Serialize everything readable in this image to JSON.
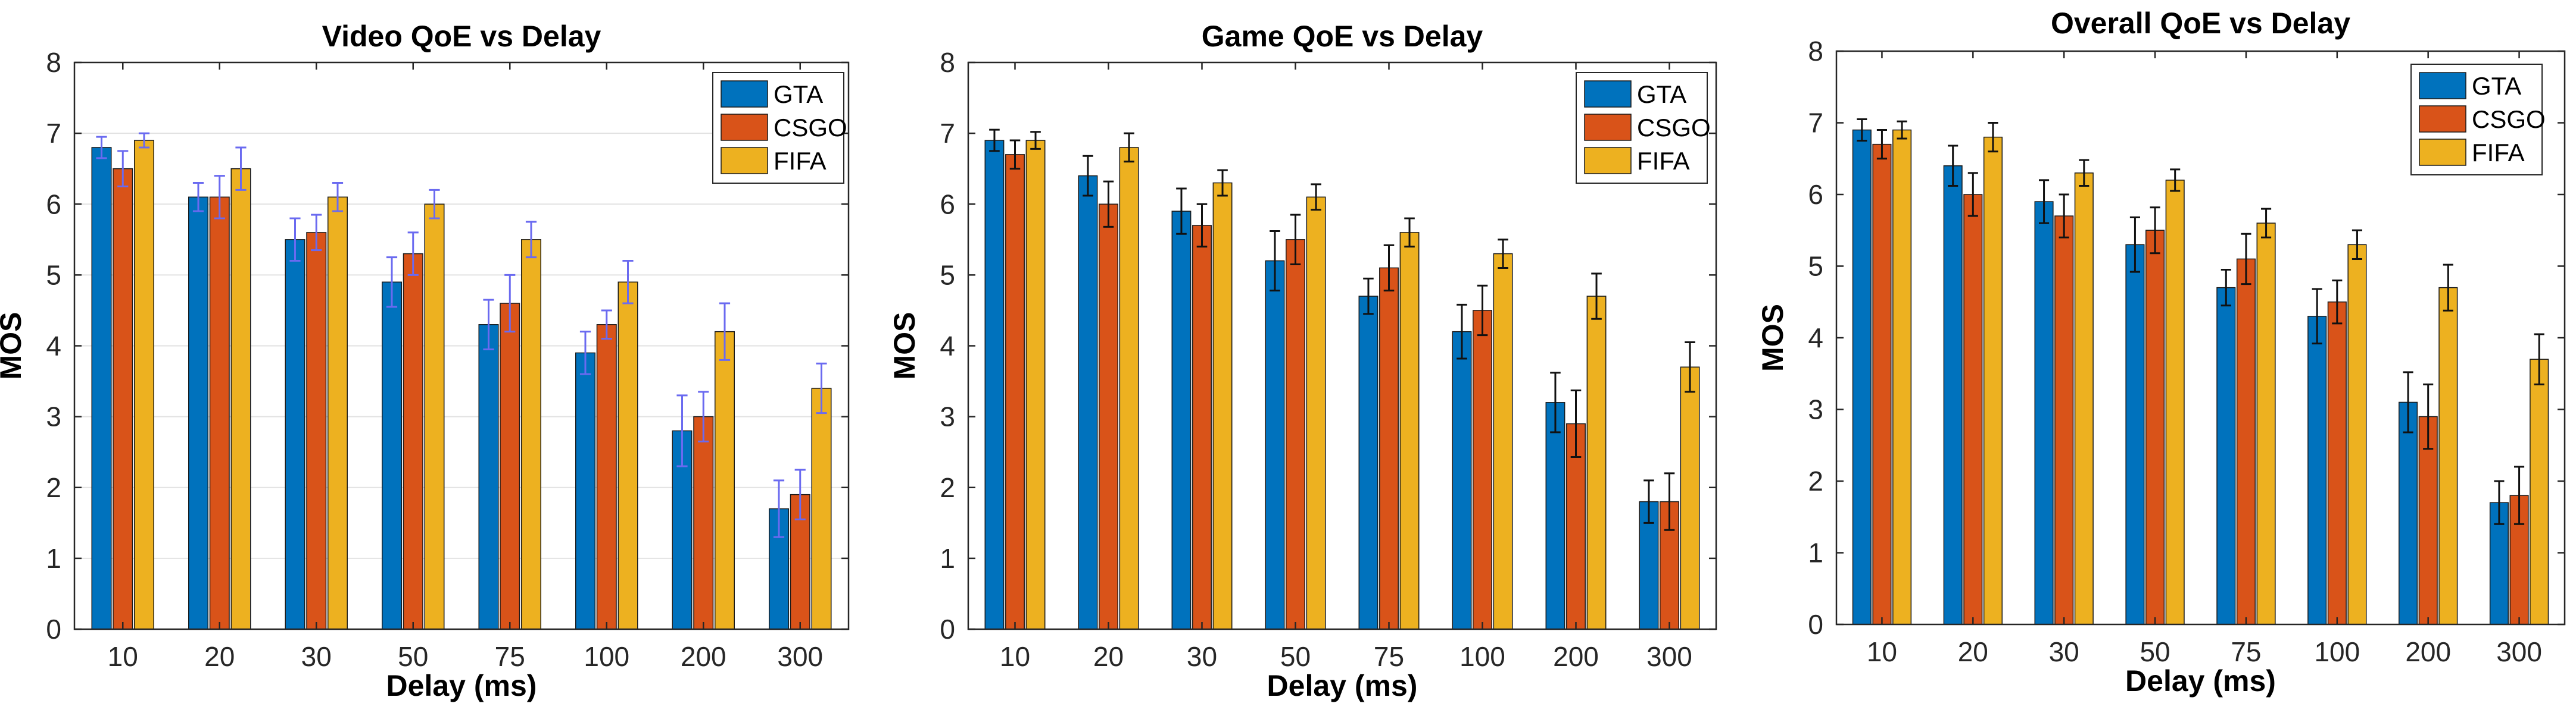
{
  "chart_data": [
    {
      "type": "bar",
      "title": "Video QoE vs Delay",
      "xlabel": "Delay (ms)",
      "ylabel": "MOS",
      "ylim": [
        0,
        8
      ],
      "yticks": [
        "0",
        "1",
        "2",
        "3",
        "4",
        "5",
        "6",
        "7",
        "8"
      ],
      "grid": "horizontal",
      "legend_position": "top-right",
      "categories": [
        "10",
        "20",
        "30",
        "50",
        "75",
        "100",
        "200",
        "300"
      ],
      "series": [
        {
          "name": "GTA",
          "color": "#0072BD",
          "values": [
            6.8,
            6.1,
            5.5,
            4.9,
            4.3,
            3.9,
            2.8,
            1.7
          ],
          "errors": [
            0.15,
            0.2,
            0.3,
            0.35,
            0.35,
            0.3,
            0.5,
            0.4
          ]
        },
        {
          "name": "CSGO",
          "color": "#D95319",
          "values": [
            6.5,
            6.1,
            5.6,
            5.3,
            4.6,
            4.3,
            3.0,
            1.9
          ],
          "errors": [
            0.25,
            0.3,
            0.25,
            0.3,
            0.4,
            0.2,
            0.35,
            0.35
          ]
        },
        {
          "name": "FIFA",
          "color": "#EDB120",
          "values": [
            6.9,
            6.5,
            6.1,
            6.0,
            5.5,
            4.9,
            4.2,
            3.4
          ],
          "errors": [
            0.1,
            0.3,
            0.2,
            0.2,
            0.25,
            0.3,
            0.4,
            0.35
          ]
        }
      ]
    },
    {
      "type": "bar",
      "title": "Game QoE vs Delay",
      "xlabel": "Delay (ms)",
      "ylabel": "MOS",
      "ylim": [
        0,
        8
      ],
      "yticks": [
        "0",
        "1",
        "2",
        "3",
        "4",
        "5",
        "6",
        "7",
        "8"
      ],
      "grid": "none",
      "legend_position": "top-right",
      "categories": [
        "10",
        "20",
        "30",
        "50",
        "75",
        "100",
        "200",
        "300"
      ],
      "series": [
        {
          "name": "GTA",
          "color": "#0072BD",
          "values": [
            6.9,
            6.4,
            5.9,
            5.2,
            4.7,
            4.2,
            3.2,
            1.8
          ],
          "errors": [
            0.15,
            0.28,
            0.32,
            0.42,
            0.25,
            0.38,
            0.42,
            0.3
          ]
        },
        {
          "name": "CSGO",
          "color": "#D95319",
          "values": [
            6.7,
            6.0,
            5.7,
            5.5,
            5.1,
            4.5,
            2.9,
            1.8
          ],
          "errors": [
            0.2,
            0.32,
            0.3,
            0.35,
            0.32,
            0.35,
            0.47,
            0.4
          ]
        },
        {
          "name": "FIFA",
          "color": "#EDB120",
          "values": [
            6.9,
            6.8,
            6.3,
            6.1,
            5.6,
            5.3,
            4.7,
            3.7
          ],
          "errors": [
            0.12,
            0.2,
            0.18,
            0.18,
            0.2,
            0.2,
            0.32,
            0.35
          ]
        }
      ]
    },
    {
      "type": "bar",
      "title": "Overall QoE vs Delay",
      "xlabel": "Delay (ms)",
      "ylabel": "MOS",
      "ylim": [
        0,
        8
      ],
      "yticks": [
        "0",
        "1",
        "2",
        "3",
        "4",
        "5",
        "6",
        "7",
        "8"
      ],
      "grid": "none",
      "legend_position": "top-right",
      "categories": [
        "10",
        "20",
        "30",
        "50",
        "75",
        "100",
        "200",
        "300"
      ],
      "series": [
        {
          "name": "GTA",
          "color": "#0072BD",
          "values": [
            6.9,
            6.4,
            5.9,
            5.3,
            4.7,
            4.3,
            3.1,
            1.7
          ],
          "errors": [
            0.15,
            0.28,
            0.3,
            0.38,
            0.25,
            0.38,
            0.42,
            0.3
          ]
        },
        {
          "name": "CSGO",
          "color": "#D95319",
          "values": [
            6.7,
            6.0,
            5.7,
            5.5,
            5.1,
            4.5,
            2.9,
            1.8
          ],
          "errors": [
            0.2,
            0.3,
            0.3,
            0.32,
            0.35,
            0.3,
            0.45,
            0.4
          ]
        },
        {
          "name": "FIFA",
          "color": "#EDB120",
          "values": [
            6.9,
            6.8,
            6.3,
            6.2,
            5.6,
            5.3,
            4.7,
            3.7
          ],
          "errors": [
            0.12,
            0.2,
            0.18,
            0.15,
            0.2,
            0.2,
            0.32,
            0.35
          ]
        }
      ]
    }
  ]
}
